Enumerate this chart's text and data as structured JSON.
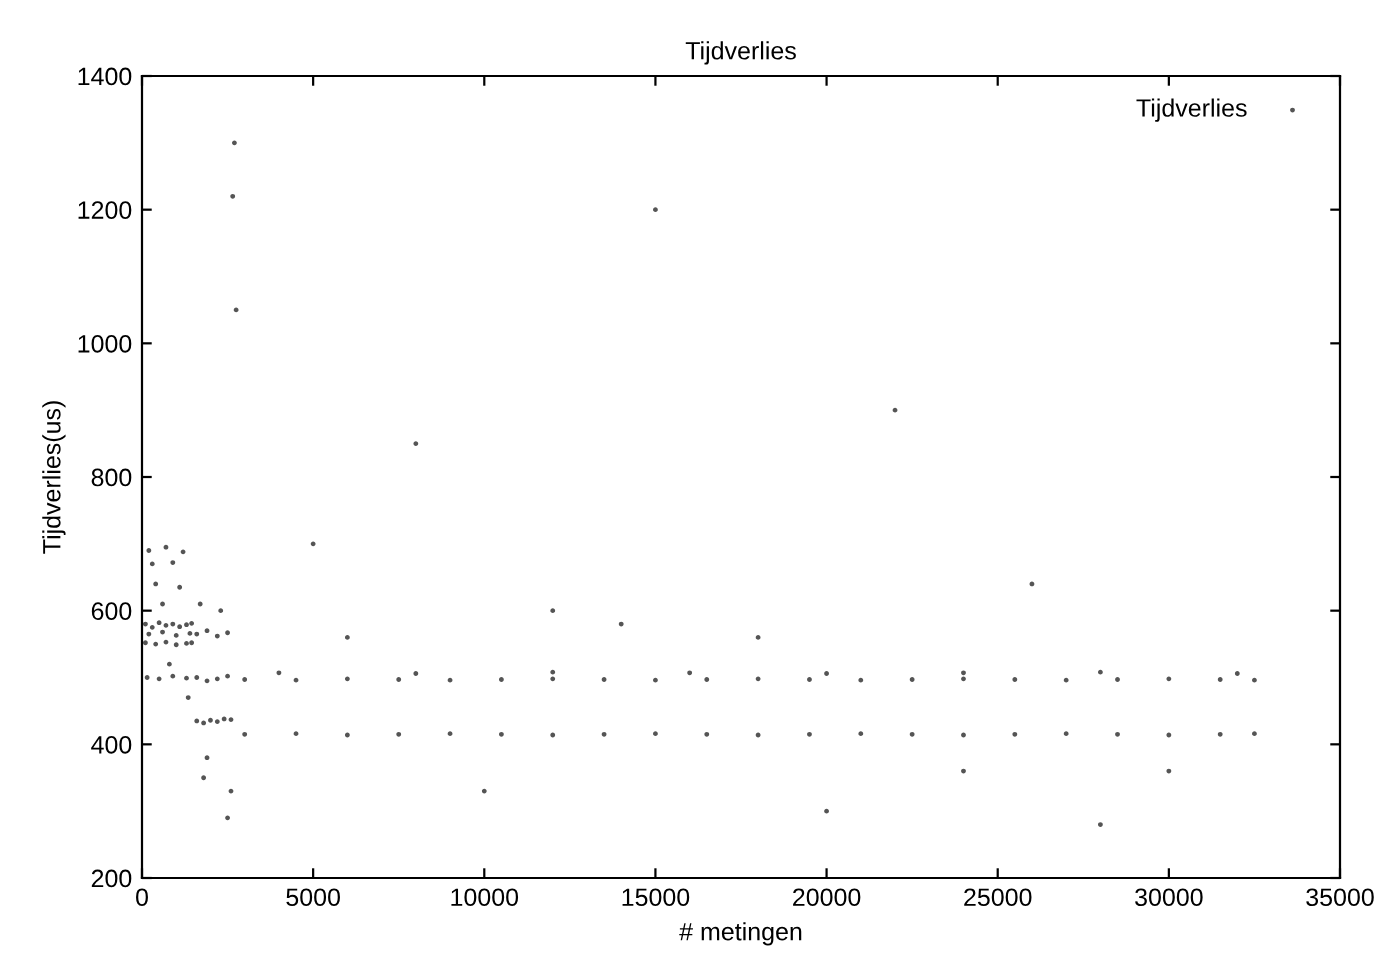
{
  "chart_data": {
    "type": "scatter",
    "title": "Tijdverlies",
    "xlabel": "# metingen",
    "ylabel": "Tijdverlies(us)",
    "xlim": [
      0,
      35000
    ],
    "xticks": [
      0,
      5000,
      10000,
      15000,
      20000,
      25000,
      30000,
      35000
    ],
    "ylim": [
      200,
      1400
    ],
    "yticks": [
      200,
      400,
      600,
      800,
      1000,
      1200,
      1400
    ],
    "grid": false,
    "legend": "top right",
    "marker": "circle",
    "series": [
      {
        "name": "Tijdverlies",
        "color": "#555555",
        "x": [
          100,
          300,
          500,
          700,
          900,
          1100,
          1300,
          1450,
          100,
          400,
          700,
          1000,
          1300,
          1450,
          200,
          600,
          1000,
          1400,
          150,
          500,
          900,
          1300,
          200,
          700,
          1200,
          300,
          900,
          400,
          1100,
          600,
          800,
          1350,
          1600,
          1900,
          2200,
          2500,
          1600,
          1900,
          2200,
          2500,
          1600,
          1800,
          2000,
          2200,
          2400,
          2600,
          1700,
          2300,
          1900,
          2600,
          2700,
          2750,
          2650,
          2500,
          1800,
          3000,
          4500,
          6000,
          7500,
          9000,
          10500,
          12000,
          13500,
          15000,
          16500,
          18000,
          19500,
          21000,
          22500,
          24000,
          25500,
          27000,
          28500,
          30000,
          31500,
          32500,
          3000,
          4500,
          6000,
          7500,
          9000,
          10500,
          12000,
          13500,
          15000,
          16500,
          18000,
          19500,
          21000,
          22500,
          24000,
          25500,
          27000,
          28500,
          30000,
          31500,
          32500,
          4000,
          8000,
          12000,
          16000,
          20000,
          24000,
          28000,
          32000,
          5000,
          8000,
          12000,
          15000,
          18000,
          22000,
          26000,
          30000,
          10000,
          20000,
          28000,
          6000,
          14000,
          24000
        ],
        "values": [
          580,
          575,
          582,
          578,
          580,
          576,
          579,
          581,
          552,
          550,
          553,
          549,
          551,
          552,
          565,
          568,
          563,
          566,
          500,
          498,
          502,
          499,
          690,
          695,
          688,
          670,
          672,
          640,
          635,
          610,
          520,
          470,
          565,
          570,
          562,
          567,
          500,
          495,
          498,
          502,
          435,
          432,
          436,
          434,
          438,
          437,
          610,
          600,
          380,
          330,
          1300,
          1050,
          1220,
          290,
          350,
          497,
          496,
          498,
          497,
          496,
          497,
          498,
          497,
          496,
          497,
          498,
          497,
          496,
          497,
          498,
          497,
          496,
          497,
          498,
          497,
          496,
          415,
          416,
          414,
          415,
          416,
          415,
          414,
          415,
          416,
          415,
          414,
          415,
          416,
          415,
          414,
          415,
          416,
          415,
          414,
          415,
          416,
          507,
          506,
          508,
          507,
          506,
          507,
          508,
          506,
          700,
          850,
          600,
          1200,
          560,
          900,
          640,
          360,
          330,
          300,
          280,
          560,
          580,
          360
        ]
      }
    ]
  }
}
